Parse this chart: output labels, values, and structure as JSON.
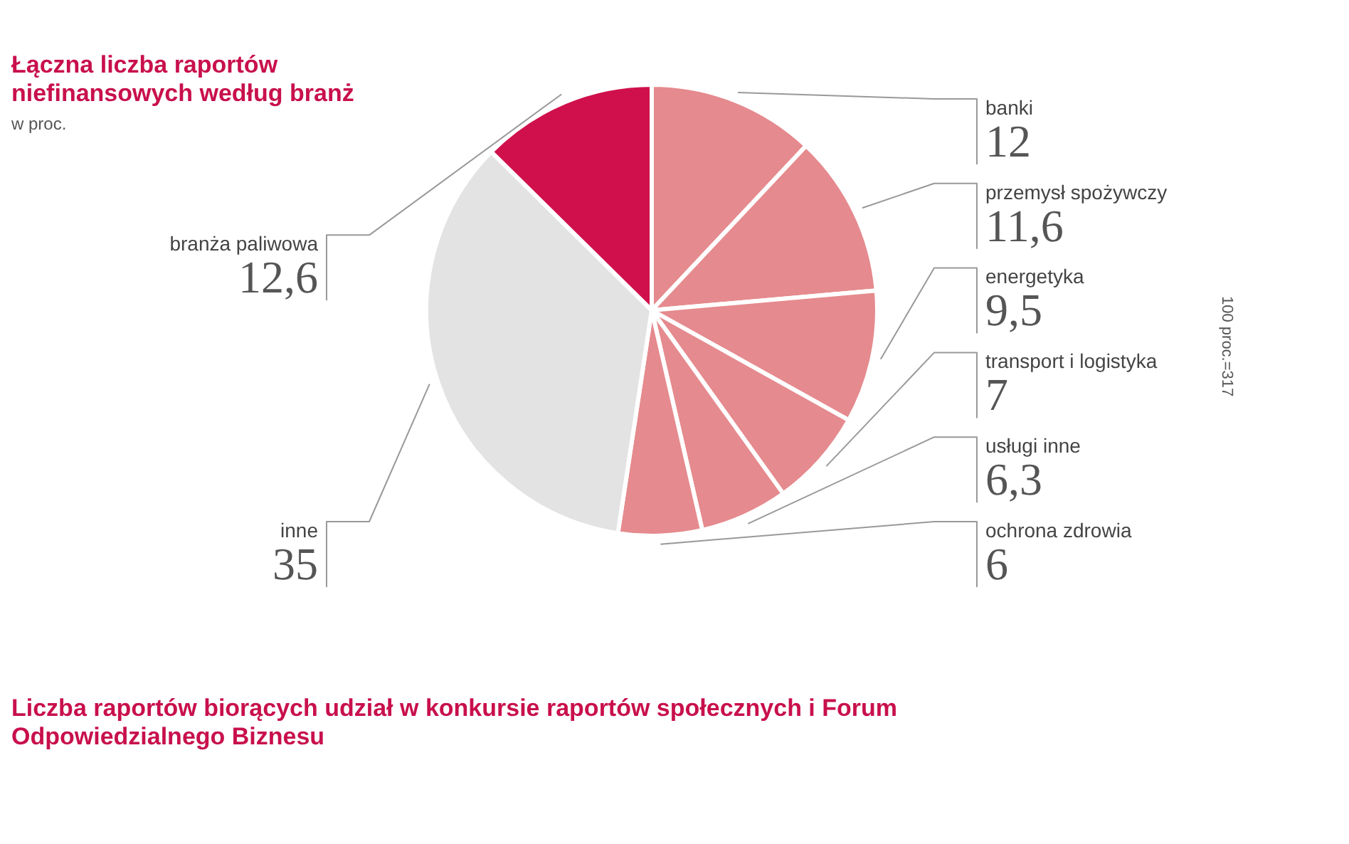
{
  "chart_data": {
    "type": "pie",
    "title": "Łączna liczba raportów niefinansowych według branż",
    "subtitle": "w proc.",
    "categories": [
      "banki",
      "przemysł spożywczy",
      "energetyka",
      "transport i logistyka",
      "usługi inne",
      "ochrona zdrowia",
      "inne",
      "branża paliwowa"
    ],
    "values": [
      12,
      11.6,
      9.5,
      7,
      6.3,
      6,
      35,
      12.6
    ],
    "colors": [
      "#e58a8e",
      "#e58a8e",
      "#e58a8e",
      "#e58a8e",
      "#e58a8e",
      "#e58a8e",
      "#e3e3e3",
      "#d0104c"
    ],
    "value_labels": [
      "12",
      "11,6",
      "9,5",
      "7",
      "6,3",
      "6",
      "35",
      "12,6"
    ],
    "legend": false,
    "annotations": [
      "100 proc.=317",
      "Liczba raportów biorących udział w konkursie raportów społecznych i Forum Odpowiedzialnego Biznesu"
    ]
  }
}
